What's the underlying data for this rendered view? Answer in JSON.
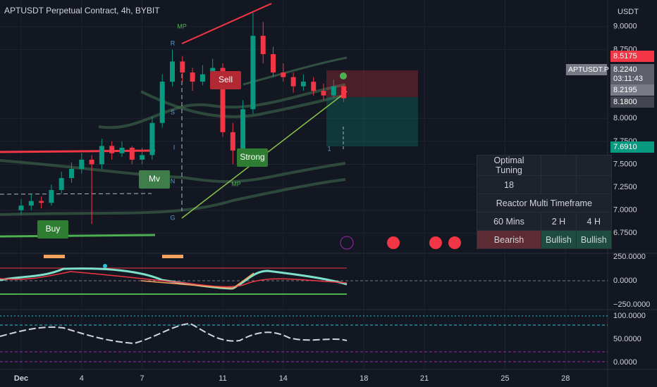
{
  "header": {
    "title": "APTUSDT Perpetual Contract, 4h, BYBIT",
    "currency": "USDT"
  },
  "price_chart": {
    "type": "candlestick",
    "xlim": [
      -1.049,
      29.09
    ],
    "xticks": [
      {
        "value": 0,
        "label": "Dec"
      },
      {
        "value": 3,
        "label": "4"
      },
      {
        "value": 6,
        "label": "7"
      },
      {
        "value": 10,
        "label": "11"
      },
      {
        "value": 13,
        "label": "14"
      },
      {
        "value": 17,
        "label": "18"
      },
      {
        "value": 20,
        "label": "21"
      },
      {
        "value": 24,
        "label": "25"
      },
      {
        "value": 27,
        "label": "28"
      }
    ],
    "ylim": [
      6.53,
      9.29
    ],
    "yticks": [
      {
        "value": 9,
        "label": "9.0000"
      },
      {
        "value": 8.75,
        "label": "8.7500"
      },
      {
        "value": 8,
        "label": "8.0000"
      },
      {
        "value": 7.75,
        "label": "7.7500"
      },
      {
        "value": 7.5,
        "label": "7.5000"
      },
      {
        "value": 7.25,
        "label": "7.2500"
      },
      {
        "value": 7,
        "label": "7.0000"
      },
      {
        "value": 6.75,
        "label": "6.7500"
      }
    ],
    "up_color": "#089981",
    "down_color": "#f23645",
    "x": [
      0,
      0.5,
      1,
      1.5,
      2,
      2.5,
      3,
      3.5,
      4,
      4.5,
      5,
      5.5,
      6,
      6.5,
      7,
      7.5,
      8,
      8.5,
      9,
      9.5,
      10,
      10.5,
      11,
      11.5,
      12,
      12.5,
      13,
      13.5,
      14,
      14.5,
      15,
      15.5,
      16
    ],
    "open": [
      7.0,
      7.05,
      7.1,
      7.08,
      7.22,
      7.35,
      7.45,
      7.55,
      7.5,
      7.7,
      7.62,
      7.68,
      7.55,
      7.6,
      7.95,
      8.4,
      8.62,
      8.5,
      8.4,
      8.48,
      8.55,
      7.85,
      7.65,
      8.1,
      8.9,
      8.7,
      8.5,
      8.45,
      8.35,
      8.4,
      8.3,
      8.25,
      8.35
    ],
    "high": [
      7.12,
      7.18,
      7.15,
      7.28,
      7.42,
      7.52,
      7.62,
      7.6,
      7.78,
      7.75,
      7.75,
      7.7,
      7.68,
      8.02,
      8.48,
      8.75,
      8.68,
      8.55,
      8.58,
      8.65,
      8.6,
      7.95,
      8.2,
      9.15,
      9.05,
      8.78,
      8.6,
      8.5,
      8.48,
      8.45,
      8.38,
      8.42,
      8.36
    ],
    "low": [
      6.95,
      7.0,
      7.02,
      7.05,
      7.18,
      7.3,
      7.4,
      6.85,
      7.45,
      7.55,
      7.58,
      7.5,
      7.5,
      7.55,
      7.9,
      8.35,
      8.4,
      8.3,
      8.36,
      8.45,
      7.8,
      7.5,
      7.6,
      8.05,
      8.6,
      8.45,
      8.4,
      8.28,
      8.3,
      8.25,
      8.2,
      8.22,
      8.18
    ],
    "close": [
      7.05,
      7.1,
      7.08,
      7.22,
      7.35,
      7.45,
      7.55,
      7.5,
      7.7,
      7.62,
      7.68,
      7.55,
      7.6,
      7.95,
      8.4,
      8.62,
      8.5,
      8.4,
      8.48,
      8.55,
      7.85,
      7.65,
      8.1,
      8.9,
      8.7,
      8.5,
      8.45,
      8.35,
      8.4,
      8.3,
      8.25,
      8.35,
      8.22
    ]
  },
  "price_tags": [
    "8.5175",
    "8.2240",
    "03:11:43",
    "8.2195",
    "8.1800",
    "7.6910"
  ],
  "symbol_tag": "APTUSDT.P",
  "annotations": [
    "Buy",
    "Sell",
    "Strong",
    "Mv",
    "MP",
    "MP",
    "R",
    "S",
    "I",
    "N",
    "G",
    "1"
  ],
  "oscillator_1": {
    "ylim": [
      -301.5,
      286.8
    ],
    "yticks": [
      {
        "value": 250,
        "label": "250.0000"
      },
      {
        "value": 0,
        "label": "0.0000"
      },
      {
        "value": -250,
        "label": "−250.0000"
      }
    ]
  },
  "oscillator_2": {
    "ylim": [
      -15.2,
      113.6
    ],
    "yticks": [
      {
        "value": 100,
        "label": "100.0000"
      },
      {
        "value": 50,
        "label": "50.0000"
      },
      {
        "value": 0,
        "label": "0.0000"
      }
    ]
  },
  "table": {
    "rows": [
      [
        "Optimal Tuning",
        "",
        ""
      ],
      [
        "18",
        "",
        ""
      ],
      [
        "Reactor Multi Timeframe"
      ],
      [
        "60 Mins",
        "2 H",
        "4 H"
      ],
      [
        "Bearish",
        "Bullish",
        "Bullish"
      ]
    ]
  }
}
